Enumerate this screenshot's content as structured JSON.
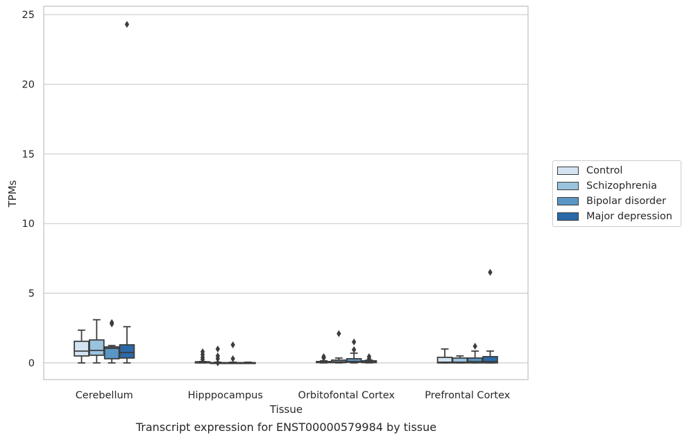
{
  "caption": "Transcript expression for ENST00000579984 by tissue",
  "chart_data": {
    "type": "box",
    "xlabel": "Tissue",
    "ylabel": "TPMs",
    "ylim": [
      -1.2,
      25.6
    ],
    "yticks": [
      0,
      5,
      10,
      15,
      20,
      25
    ],
    "grid": true,
    "legend_position": "right",
    "categories": [
      "Cerebellum",
      "Hipppocampus",
      "Orbitofontal Cortex",
      "Prefrontal Cortex"
    ],
    "series": [
      {
        "name": "Control",
        "color": "#d3e3f2",
        "boxes": [
          {
            "whislo": 0.0,
            "q1": 0.5,
            "med": 0.85,
            "q3": 1.55,
            "whishi": 2.35,
            "fliers": []
          },
          {
            "whislo": 0.0,
            "q1": 0.0,
            "med": 0.02,
            "q3": 0.08,
            "whishi": 0.1,
            "fliers": [
              0.25,
              0.4,
              0.6,
              0.8
            ]
          },
          {
            "whislo": 0.0,
            "q1": 0.02,
            "med": 0.05,
            "q3": 0.1,
            "whishi": 0.15,
            "fliers": [
              0.35,
              0.45
            ]
          },
          {
            "whislo": 0.0,
            "q1": 0.0,
            "med": 0.05,
            "q3": 0.4,
            "whishi": 1.0,
            "fliers": []
          }
        ]
      },
      {
        "name": "Schizophrenia",
        "color": "#9ac3de",
        "boxes": [
          {
            "whislo": 0.0,
            "q1": 0.55,
            "med": 0.9,
            "q3": 1.65,
            "whishi": 3.1,
            "fliers": []
          },
          {
            "whislo": 0.0,
            "q1": 0.0,
            "med": 0.0,
            "q3": 0.02,
            "whishi": 0.05,
            "fliers": [
              0.0,
              0.3,
              0.5,
              1.0
            ]
          },
          {
            "whislo": 0.0,
            "q1": 0.02,
            "med": 0.08,
            "q3": 0.2,
            "whishi": 0.35,
            "fliers": [
              2.1
            ]
          },
          {
            "whislo": 0.0,
            "q1": 0.0,
            "med": 0.05,
            "q3": 0.35,
            "whishi": 0.5,
            "fliers": []
          }
        ]
      },
      {
        "name": "Bipolar disorder",
        "color": "#5996c4",
        "boxes": [
          {
            "whislo": 0.0,
            "q1": 0.3,
            "med": 1.05,
            "q3": 1.15,
            "whishi": 1.25,
            "fliers": [
              2.8,
              2.9
            ]
          },
          {
            "whislo": 0.0,
            "q1": 0.0,
            "med": 0.0,
            "q3": 0.02,
            "whishi": 0.05,
            "fliers": [
              0.3,
              1.3
            ]
          },
          {
            "whislo": 0.0,
            "q1": 0.05,
            "med": 0.1,
            "q3": 0.3,
            "whishi": 0.7,
            "fliers": [
              0.95,
              1.5
            ]
          },
          {
            "whislo": 0.0,
            "q1": 0.0,
            "med": 0.1,
            "q3": 0.35,
            "whishi": 0.85,
            "fliers": [
              1.2
            ]
          }
        ]
      },
      {
        "name": "Major depression",
        "color": "#2b6aa8",
        "boxes": [
          {
            "whislo": 0.0,
            "q1": 0.35,
            "med": 0.75,
            "q3": 1.3,
            "whishi": 2.6,
            "fliers": [
              24.3
            ]
          },
          {
            "whislo": 0.0,
            "q1": 0.0,
            "med": 0.0,
            "q3": 0.02,
            "whishi": 0.05,
            "fliers": []
          },
          {
            "whislo": 0.0,
            "q1": 0.02,
            "med": 0.05,
            "q3": 0.15,
            "whishi": 0.2,
            "fliers": [
              0.3,
              0.45
            ]
          },
          {
            "whislo": 0.0,
            "q1": 0.0,
            "med": 0.1,
            "q3": 0.45,
            "whishi": 0.85,
            "fliers": [
              6.5
            ]
          }
        ]
      }
    ]
  }
}
